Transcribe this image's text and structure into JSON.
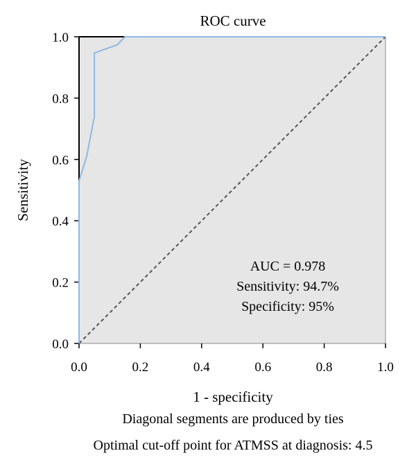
{
  "chart_data": {
    "type": "line",
    "title": "ROC curve",
    "xlabel": "1 - specificity",
    "ylabel": "Sensitivity",
    "xlim": [
      0,
      1
    ],
    "ylim": [
      0,
      1
    ],
    "x_ticks": [
      "0.0",
      "0.2",
      "0.4",
      "0.6",
      "0.8",
      "1.0"
    ],
    "y_ticks": [
      "0.0",
      "0.2",
      "0.4",
      "0.6",
      "0.8",
      "1.0"
    ],
    "grid": false,
    "series": [
      {
        "values": [
          [
            0.0,
            0.0
          ],
          [
            0.0,
            0.53
          ],
          [
            0.025,
            0.61
          ],
          [
            0.05,
            0.74
          ],
          [
            0.05,
            0.947
          ],
          [
            0.125,
            0.974
          ],
          [
            0.15,
            1.0
          ],
          [
            1.0,
            1.0
          ]
        ],
        "color": "#8fb8e4"
      }
    ],
    "reference_line": {
      "from": [
        0,
        0
      ],
      "to": [
        1,
        1
      ],
      "style": "dashed",
      "color": "#555555"
    },
    "annotations": [
      "AUC = 0.978",
      "Sensitivity: 94.7%",
      "Specificity: 95%"
    ],
    "footnotes": [
      "Diagonal segments are produced by ties",
      "Optimal cut-off point for ATMSS at diagnosis: 4.5"
    ],
    "colors": {
      "plot_background": "#e6e6e6",
      "curve": "#8fb8e4",
      "axes": "#000000"
    }
  }
}
